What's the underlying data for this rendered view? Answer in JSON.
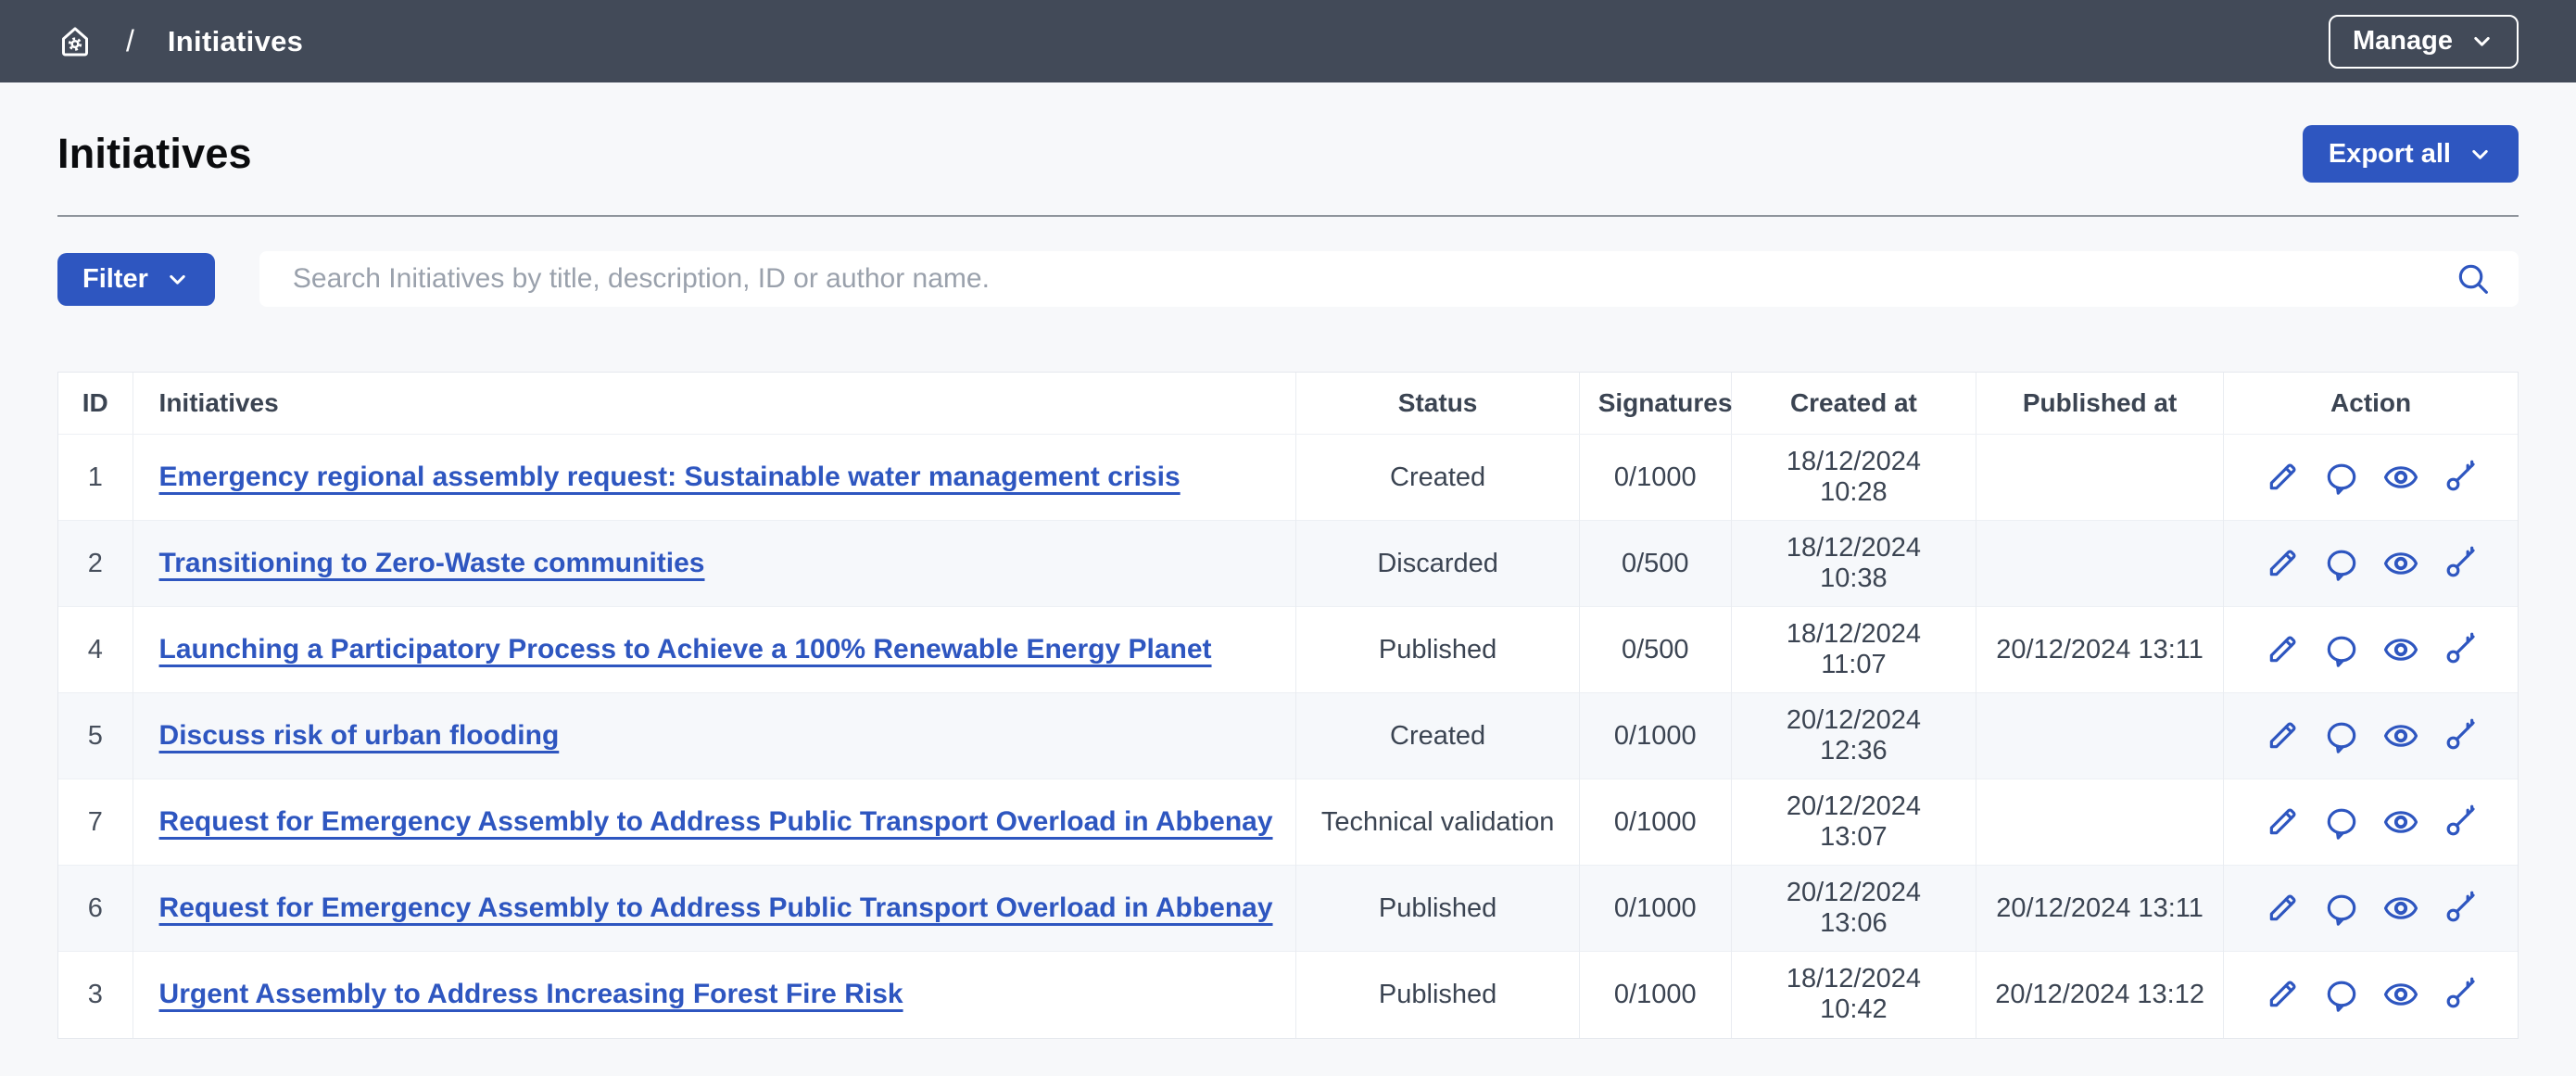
{
  "topbar": {
    "breadcrumb_separator": "/",
    "breadcrumb_current": "Initiatives",
    "manage_label": "Manage"
  },
  "header": {
    "title": "Initiatives",
    "export_label": "Export all"
  },
  "toolbar": {
    "filter_label": "Filter",
    "search_placeholder": "Search Initiatives by title, description, ID or author name."
  },
  "table": {
    "columns": [
      "ID",
      "Initiatives",
      "Status",
      "Signatures",
      "Created at",
      "Published at",
      "Action"
    ],
    "rows": [
      {
        "id": "1",
        "title": "Emergency regional assembly request: Sustainable water management crisis",
        "status": "Created",
        "signatures": "0/1000",
        "created_at": "18/12/2024 10:28",
        "published_at": ""
      },
      {
        "id": "2",
        "title": "Transitioning to Zero-Waste communities",
        "status": "Discarded",
        "signatures": "0/500",
        "created_at": "18/12/2024 10:38",
        "published_at": ""
      },
      {
        "id": "4",
        "title": "Launching a Participatory Process to Achieve a 100% Renewable Energy Planet",
        "status": "Published",
        "signatures": "0/500",
        "created_at": "18/12/2024 11:07",
        "published_at": "20/12/2024 13:11"
      },
      {
        "id": "5",
        "title": "Discuss risk of urban flooding",
        "status": "Created",
        "signatures": "0/1000",
        "created_at": "20/12/2024 12:36",
        "published_at": ""
      },
      {
        "id": "7",
        "title": "Request for Emergency Assembly to Address Public Transport Overload in Abbenay",
        "status": "Technical validation",
        "signatures": "0/1000",
        "created_at": "20/12/2024 13:07",
        "published_at": ""
      },
      {
        "id": "6",
        "title": "Request for Emergency Assembly to Address Public Transport Overload in Abbenay",
        "status": "Published",
        "signatures": "0/1000",
        "created_at": "20/12/2024 13:06",
        "published_at": "20/12/2024 13:11"
      },
      {
        "id": "3",
        "title": "Urgent Assembly to Address Increasing Forest Fire Risk",
        "status": "Published",
        "signatures": "0/1000",
        "created_at": "18/12/2024 10:42",
        "published_at": "20/12/2024 13:12"
      }
    ],
    "actions": [
      {
        "name": "edit",
        "icon": "pencil-icon"
      },
      {
        "name": "answer",
        "icon": "chat-icon"
      },
      {
        "name": "preview",
        "icon": "eye-icon"
      },
      {
        "name": "permissions",
        "icon": "key-icon"
      }
    ]
  },
  "colors": {
    "accent": "#2e56c0",
    "topbar_bg": "#424a58",
    "page_bg": "#f7f8fa",
    "zebra_row": "#f6f8fb",
    "link": "#2e56c0"
  }
}
